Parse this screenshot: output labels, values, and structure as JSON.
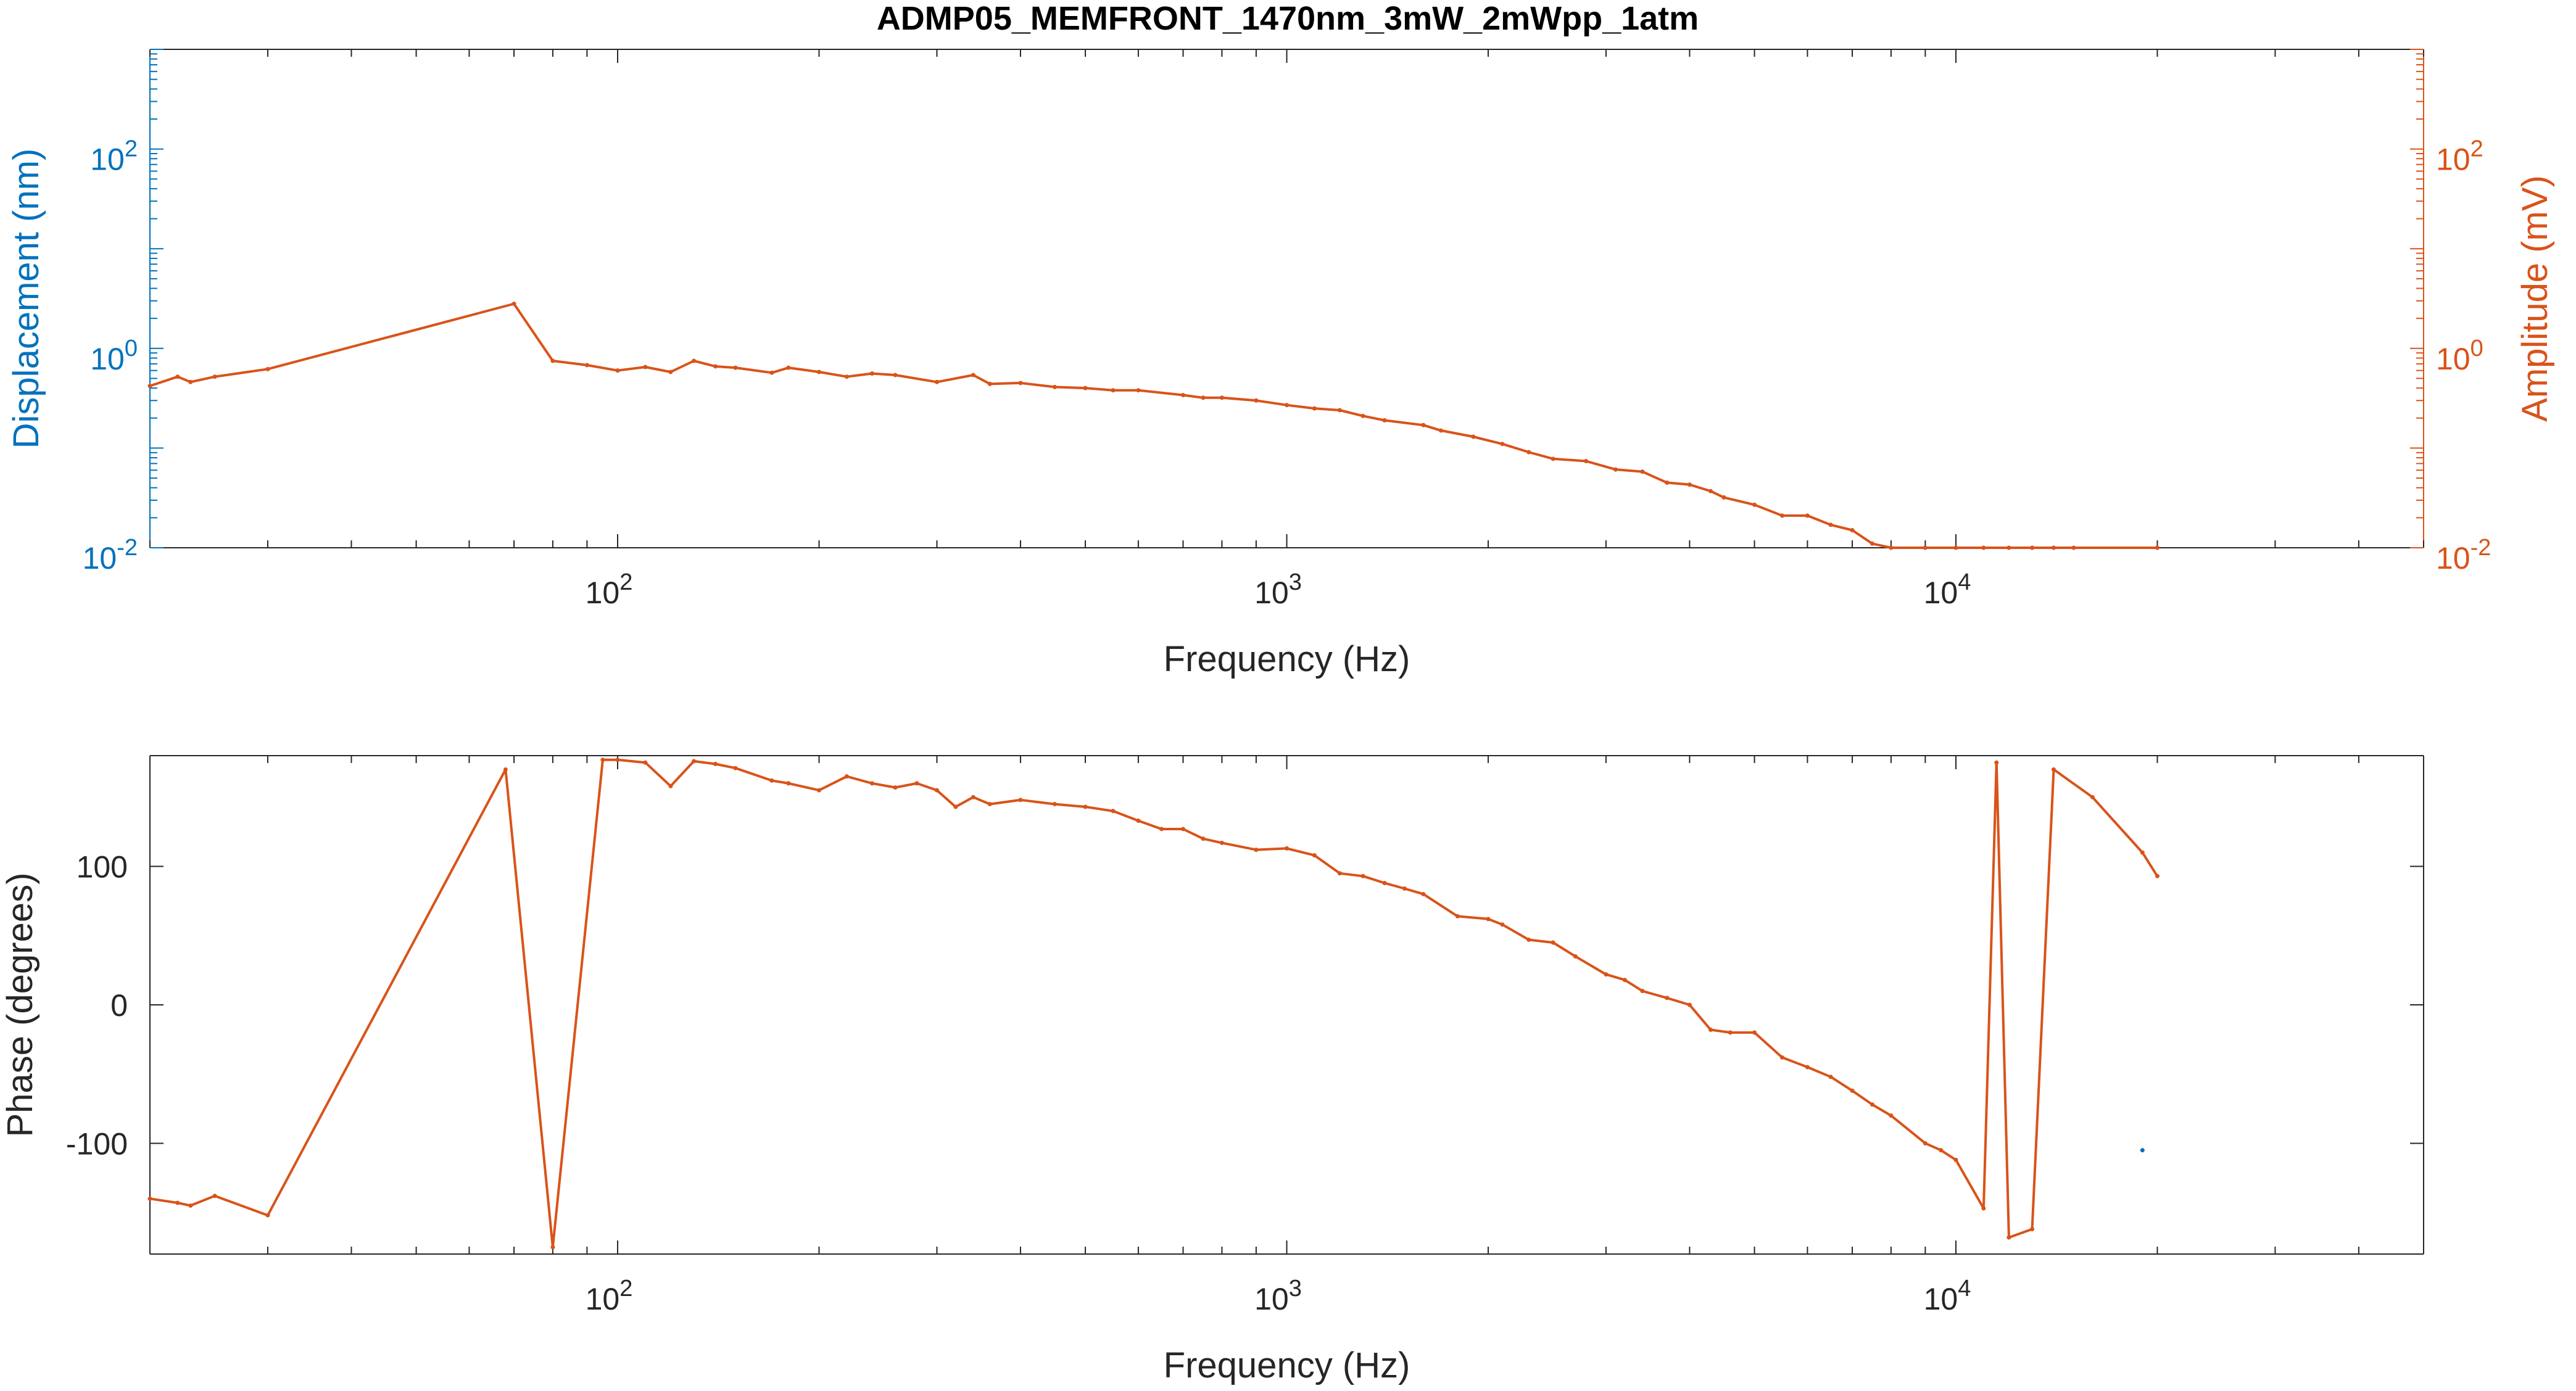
{
  "title": "ADMP05_MEMFRONT_1470nm_3mW_2mWpp_1atm",
  "colors": {
    "left_axis": "#0072BD",
    "right_axis": "#D95319",
    "axes": "#262626",
    "grid": "#000000"
  },
  "chart_data": [
    {
      "type": "line",
      "xlabel": "Frequency (Hz)",
      "ylabel_left": "Displacement (nm)",
      "ylabel_right": "Amplitude (mV)",
      "xscale": "log",
      "yscale": "log",
      "xlim": [
        20,
        50000
      ],
      "ylim": [
        0.01,
        1000
      ],
      "ylim_right": [
        0.01,
        1000
      ],
      "x_ticks": [
        {
          "base": "10",
          "exp": "2",
          "value": 100
        },
        {
          "base": "10",
          "exp": "3",
          "value": 1000
        },
        {
          "base": "10",
          "exp": "4",
          "value": 10000
        }
      ],
      "y_ticks": [
        {
          "base": "10",
          "exp": "-2",
          "value": 0.01
        },
        {
          "base": "10",
          "exp": "0",
          "value": 1
        },
        {
          "base": "10",
          "exp": "2",
          "value": 100
        }
      ],
      "y_ticks_right": [
        {
          "base": "10",
          "exp": "-2",
          "value": 0.01
        },
        {
          "base": "10",
          "exp": "0",
          "value": 1
        },
        {
          "base": "10",
          "exp": "2",
          "value": 100
        }
      ],
      "series": [
        {
          "axis": "right",
          "color": "#D95319",
          "x": [
            20,
            22,
            23,
            25,
            30,
            70,
            80,
            90,
            100,
            110,
            120,
            130,
            140,
            150,
            170,
            180,
            200,
            220,
            240,
            260,
            300,
            340,
            360,
            400,
            450,
            500,
            550,
            600,
            700,
            750,
            800,
            900,
            1000,
            1100,
            1200,
            1300,
            1400,
            1600,
            1700,
            1900,
            2100,
            2300,
            2500,
            2800,
            3100,
            3400,
            3700,
            4000,
            4300,
            4500,
            5000,
            5500,
            6000,
            6500,
            7000,
            7500,
            8000,
            9000,
            10000,
            11000,
            12000,
            13000,
            14000,
            15000,
            20000
          ],
          "y": [
            0.42,
            0.52,
            0.46,
            0.52,
            0.62,
            2.8,
            0.75,
            0.68,
            0.6,
            0.65,
            0.58,
            0.75,
            0.66,
            0.64,
            0.57,
            0.64,
            0.58,
            0.52,
            0.56,
            0.54,
            0.46,
            0.54,
            0.44,
            0.45,
            0.41,
            0.4,
            0.38,
            0.38,
            0.34,
            0.32,
            0.32,
            0.3,
            0.27,
            0.25,
            0.24,
            0.21,
            0.19,
            0.17,
            0.15,
            0.13,
            0.11,
            0.091,
            0.078,
            0.074,
            0.061,
            0.058,
            0.045,
            0.043,
            0.037,
            0.032,
            0.027,
            0.021,
            0.021,
            0.017,
            0.015,
            0.011,
            0.0086,
            0.0085,
            0.0055,
            0.0062,
            0.0045,
            0.0068,
            0.004,
            0.0032,
            0.0021
          ]
        }
      ]
    },
    {
      "type": "line",
      "xlabel": "Frequency (Hz)",
      "ylabel_left": "Phase (degrees)",
      "xscale": "log",
      "yscale": "linear",
      "xlim": [
        20,
        50000
      ],
      "ylim": [
        -180,
        180
      ],
      "x_ticks": [
        {
          "base": "10",
          "exp": "2",
          "value": 100
        },
        {
          "base": "10",
          "exp": "3",
          "value": 1000
        },
        {
          "base": "10",
          "exp": "4",
          "value": 10000
        }
      ],
      "y_ticks": [
        {
          "label": "-100",
          "value": -100
        },
        {
          "label": "0",
          "value": 0
        },
        {
          "label": "100",
          "value": 100
        }
      ],
      "series": [
        {
          "color": "#D95319",
          "x": [
            20,
            22,
            23,
            25,
            30,
            68,
            80,
            95,
            100,
            110,
            120,
            130,
            140,
            150,
            170,
            180,
            200,
            220,
            240,
            260,
            280,
            300,
            320,
            340,
            360,
            400,
            450,
            500,
            550,
            600,
            650,
            700,
            750,
            800,
            900,
            1000,
            1100,
            1200,
            1300,
            1400,
            1500,
            1600,
            1800,
            2000,
            2100,
            2300,
            2500,
            2700,
            3000,
            3200,
            3400,
            3700,
            4000,
            4300,
            4600,
            5000,
            5500,
            6000,
            6500,
            7000,
            7500,
            8000,
            9000,
            9500,
            10000,
            11000,
            11500,
            12000,
            13000,
            14000,
            16000,
            19000,
            20000
          ],
          "y": [
            -140,
            -143,
            -145,
            -138,
            -152,
            170,
            -175,
            177,
            177,
            175,
            158,
            176,
            174,
            171,
            162,
            160,
            155,
            165,
            160,
            157,
            160,
            155,
            143,
            150,
            145,
            148,
            145,
            143,
            140,
            133,
            127,
            127,
            120,
            117,
            112,
            113,
            108,
            95,
            93,
            88,
            84,
            80,
            64,
            62,
            58,
            47,
            45,
            35,
            22,
            18,
            10,
            5,
            0,
            -18,
            -20,
            -20,
            -38,
            -45,
            -52,
            -62,
            -72,
            -80,
            -100,
            -105,
            -112,
            -147,
            175,
            -168,
            -162,
            170,
            150,
            110,
            93
          ]
        },
        {
          "color": "#0072BD",
          "x": [
            19000
          ],
          "y": [
            -105
          ]
        }
      ]
    }
  ]
}
